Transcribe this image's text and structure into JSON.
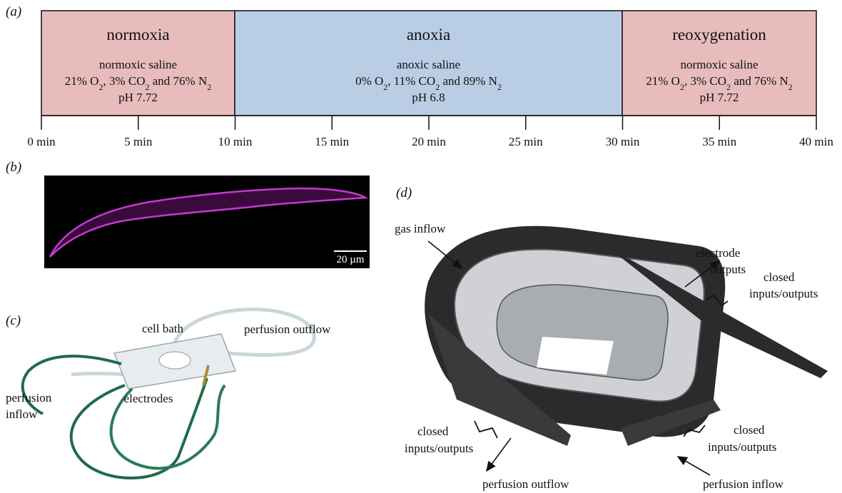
{
  "panel_a": {
    "label": "(a)",
    "phases": [
      {
        "name": "normoxia",
        "solution": "normoxic saline",
        "gas": [
          "21% O",
          "2",
          ", 3% CO",
          "2",
          " and 76% N",
          "2"
        ],
        "ph": "pH 7.72"
      },
      {
        "name": "anoxia",
        "solution": "anoxic saline",
        "gas": [
          "0% O",
          "2",
          ", 11% CO",
          "2",
          " and 89% N",
          "2"
        ],
        "ph": "pH 6.8"
      },
      {
        "name": "reoxygenation",
        "solution": "normoxic saline",
        "gas": [
          "21% O",
          "2",
          ", 3% CO",
          "2",
          " and 76% N",
          "2"
        ],
        "ph": "pH 7.72"
      }
    ],
    "ticks": [
      "0 min",
      "5 min",
      "10 min",
      "15 min",
      "20 min",
      "25 min",
      "30 min",
      "35 min",
      "40 min"
    ]
  },
  "panel_b": {
    "label": "(b)",
    "scale_bar": "20 µm"
  },
  "panel_c": {
    "label": "(c)",
    "cell_bath": "cell bath",
    "outflow": "perfusion outflow",
    "inflow": [
      "perfusion",
      "inflow"
    ],
    "electrodes": "electrodes"
  },
  "panel_d": {
    "label": "(d)",
    "gas_inflow": "gas inflow",
    "electrode_outputs": [
      "electrode",
      "outputs"
    ],
    "closed_right_top": [
      "closed",
      "inputs/outputs"
    ],
    "closed_left": [
      "closed",
      "inputs/outputs"
    ],
    "closed_right_bottom": [
      "closed",
      "inputs/outputs"
    ],
    "perfusion_outflow": "perfusion outflow",
    "perfusion_inflow": "perfusion inflow"
  }
}
